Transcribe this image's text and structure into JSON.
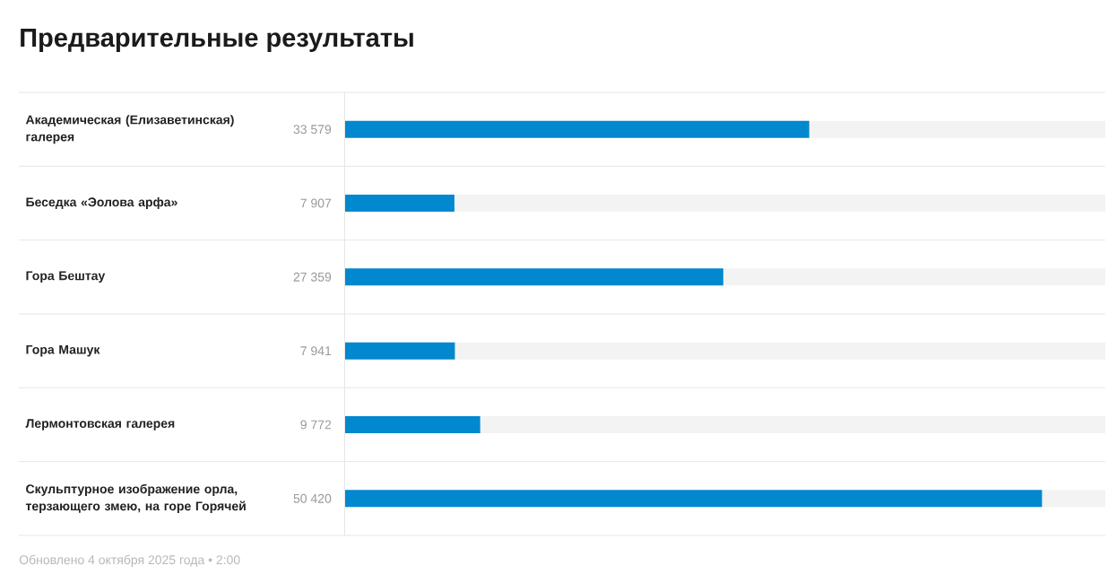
{
  "chart_data": {
    "type": "bar",
    "orientation": "horizontal",
    "title": "Предварительные результаты",
    "categories": [
      "Академическая (Елизаветинская) галерея",
      "Беседка «Эолова арфа»",
      "Гора Бештау",
      "Гора Машук",
      "Лермонтовская галерея",
      "Скульптурное изображение орла, терзающего змею, на горе Горячей"
    ],
    "values": [
      33579,
      7907,
      27359,
      7941,
      9772,
      50420
    ],
    "value_labels": [
      "33 579",
      "7 907",
      "27 359",
      "7 941",
      "9 772",
      "50 420"
    ],
    "color": "#0288ce",
    "xlim": [
      0,
      55000
    ],
    "tick_labels": "y",
    "annotations": [
      "Обновлено 4 октября 2025 года • 2:00"
    ]
  }
}
